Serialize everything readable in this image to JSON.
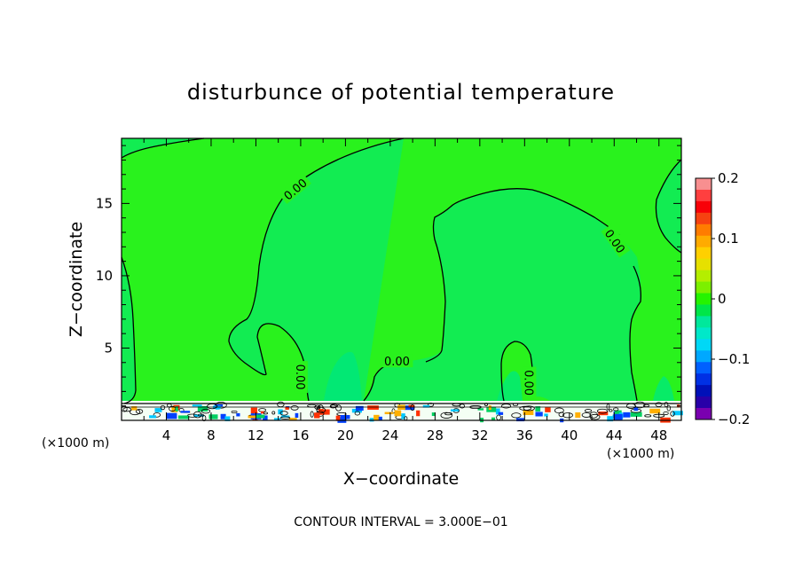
{
  "chart_data": {
    "type": "heatmap",
    "title": "disturbunce of potential temperature",
    "xlabel": "X−coordinate",
    "ylabel": "Z−coordinate",
    "x_unit_left": "(×1000 m)",
    "x_unit_right": "(×1000 m)",
    "footer": "CONTOUR INTERVAL = 3.000E−01",
    "xlim": [
      0,
      50
    ],
    "ylim": [
      0,
      19.5
    ],
    "x_ticks": [
      4,
      8,
      12,
      16,
      20,
      24,
      28,
      32,
      36,
      40,
      44,
      48
    ],
    "y_ticks": [
      5,
      10,
      15
    ],
    "contour_labels": [
      {
        "text": "0.00",
        "x": 15.5,
        "z": 16.0,
        "angle": -40
      },
      {
        "text": "0.00",
        "x": 16.0,
        "z": 3.0,
        "angle": 90
      },
      {
        "text": "0.00",
        "x": 24.6,
        "z": 4.1,
        "angle": 0
      },
      {
        "text": "0.00",
        "x": 36.4,
        "z": 2.6,
        "angle": 90
      },
      {
        "text": "0.00",
        "x": 44.1,
        "z": 12.4,
        "angle": 55
      }
    ],
    "colorbar": {
      "min": -0.2,
      "max": 0.2,
      "tick_labels": [
        "0.2",
        "0.1",
        "0",
        "−0.1",
        "−0.2"
      ],
      "tick_values": [
        0.2,
        0.1,
        0,
        -0.1,
        -0.2
      ],
      "colors": [
        "#f88f90",
        "#ff3f3f",
        "#f80008",
        "#f64211",
        "#ff7c00",
        "#ffab00",
        "#ffd000",
        "#e6e000",
        "#b4ee00",
        "#7cf000",
        "#25f300",
        "#00e648",
        "#00e89b",
        "#00e8c9",
        "#00d8f6",
        "#00a8ff",
        "#0060ff",
        "#0030e4",
        "#0010b8",
        "#2800a8",
        "#7a00b0"
      ]
    },
    "field_colors": {
      "background": "#29f21d",
      "slight_negative": "#12ec52",
      "near_zero": "#00e87a"
    }
  }
}
